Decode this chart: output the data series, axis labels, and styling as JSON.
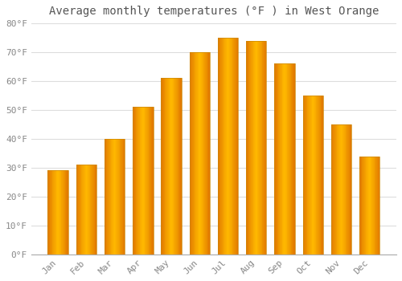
{
  "title": "Average monthly temperatures (°F ) in West Orange",
  "months": [
    "Jan",
    "Feb",
    "Mar",
    "Apr",
    "May",
    "Jun",
    "Jul",
    "Aug",
    "Sep",
    "Oct",
    "Nov",
    "Dec"
  ],
  "values": [
    29,
    31,
    40,
    51,
    61,
    70,
    75,
    74,
    66,
    55,
    45,
    34
  ],
  "bar_color_center": "#FFB300",
  "bar_color_edge": "#E07800",
  "background_color": "#FFFFFF",
  "grid_color": "#DDDDDD",
  "text_color": "#888888",
  "title_color": "#555555",
  "ylim": [
    0,
    80
  ],
  "yticks": [
    0,
    10,
    20,
    30,
    40,
    50,
    60,
    70,
    80
  ],
  "ytick_labels": [
    "0°F",
    "10°F",
    "20°F",
    "30°F",
    "40°F",
    "50°F",
    "60°F",
    "70°F",
    "80°F"
  ],
  "title_fontsize": 10,
  "tick_fontsize": 8,
  "font_family": "monospace",
  "bar_width": 0.72,
  "bar_gap": 0.04
}
